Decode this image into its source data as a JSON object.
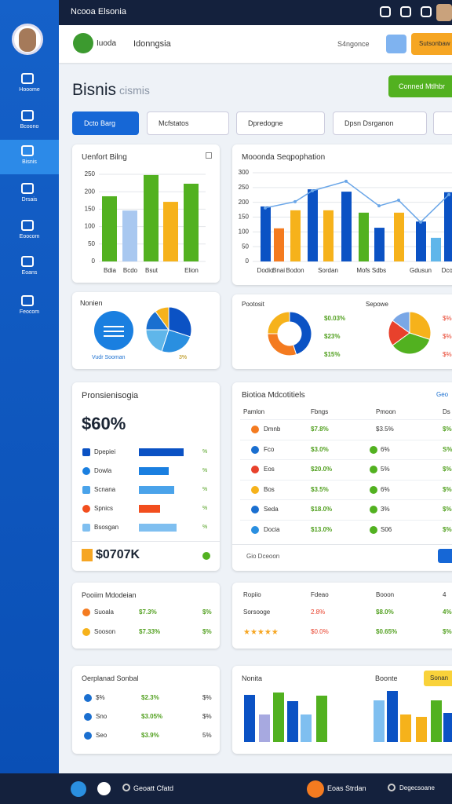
{
  "topbar": {
    "title": "Ncooa Elsonia"
  },
  "sidebar": {
    "items": [
      "Hooome",
      "Bcoono",
      "Bisnis",
      "Drsais",
      "Eoocom",
      "Eoans",
      "Feocom"
    ],
    "active": 2
  },
  "header": {
    "brand": "Iuoda",
    "country": "Idonngsia",
    "account": "S4ngonce",
    "button": "Sutsonbaw"
  },
  "page": {
    "title": "Bisnis",
    "subtitle": "cismis",
    "action": "Conned Mtlhbr"
  },
  "filters": [
    "Dcto Barg",
    "Mcfstatos",
    "Dpredogne",
    "Dpsn Dsrganon"
  ],
  "sales_chart": {
    "type": "bar",
    "title": "Uenfort Bilng",
    "categories": [
      "Bdia",
      "Bcdo",
      "Bsut",
      null,
      "Elion"
    ],
    "values": [
      187,
      146,
      248,
      171,
      223
    ],
    "colors": [
      "#52b120",
      "#a9c8f0",
      "#52b120",
      "#f6b21b",
      "#52b120"
    ],
    "ylim": [
      0,
      250
    ],
    "yticks": [
      0,
      50,
      100,
      150,
      200,
      250
    ]
  },
  "population_chart": {
    "type": "bar",
    "title": "Mooonda Seqpophation",
    "categories": [
      "Dodio",
      "Bnai",
      "Bodon",
      null,
      "Sordan",
      null,
      "Mofs",
      "Sdbs",
      null,
      "Gdusun",
      null,
      "Dcoo"
    ],
    "values": [
      186,
      112,
      173,
      244,
      173,
      236,
      165,
      114,
      165,
      135,
      80,
      234
    ],
    "colors": [
      "#0b52c4",
      "#f47b20",
      "#f6b21b",
      "#0b52c4",
      "#f6b21b",
      "#0b52c4",
      "#52b120",
      "#0b52c4",
      "#f6b21b",
      "#0b52c4",
      "#5fb6ea",
      "#0b52c4"
    ],
    "line_values": [
      181,
      null,
      202,
      239,
      null,
      271,
      null,
      188,
      207,
      133,
      null,
      226
    ],
    "line_color": "#6aa6e8",
    "ylim": [
      0,
      300
    ],
    "yticks": [
      0,
      50,
      100,
      150,
      200,
      250,
      300
    ]
  },
  "summary": {
    "title": "Nonien",
    "caption": "Vudr Sooman",
    "value": "3%",
    "pie": {
      "values": [
        30,
        25,
        20,
        15,
        10
      ],
      "colors": [
        "#0b52c4",
        "#2a8fe0",
        "#5fb6ea",
        "#1a6fd0",
        "#f6b21b"
      ]
    }
  },
  "portfolio": {
    "title": "Pootosit",
    "labels": [
      "$0.03%",
      "$23%",
      "$15%"
    ],
    "donut": {
      "values": [
        45,
        30,
        25
      ],
      "colors": [
        "#0b52c4",
        "#f47b20",
        "#f6b21b"
      ]
    },
    "title2": "Sepowe",
    "pie_labels": [
      "$%",
      "$%",
      "$%"
    ],
    "pie": {
      "values": [
        30,
        35,
        20,
        15
      ],
      "colors": [
        "#f6b21b",
        "#52b120",
        "#e8412c",
        "#7aa7e6"
      ]
    }
  },
  "progress": {
    "title": "Pronsienisogia",
    "total": "$60%",
    "max": 100,
    "rows": [
      {
        "label": "Dpepiei",
        "value": 95,
        "color": "#0b52c4",
        "unit": "%"
      },
      {
        "label": "Dowla",
        "value": 63,
        "color": "#1a7fe0",
        "unit": "%"
      },
      {
        "label": "Scnana",
        "value": 75,
        "color": "#4aa3ea",
        "unit": "%"
      },
      {
        "label": "Spnics",
        "value": 45,
        "color": "#f24e1e",
        "unit": "%"
      },
      {
        "label": "Bsosgan",
        "value": 80,
        "color": "#7fbff0",
        "unit": "%"
      }
    ],
    "footer": "$0707K"
  },
  "table": {
    "title": "Biotioa Mdcotitiels",
    "link": "Geo",
    "headers": [
      "Pamlon",
      "Fbngs",
      "Pmoon",
      "Ds"
    ],
    "rows": [
      {
        "color": "#f47b20",
        "cells": [
          "Dmnb",
          "$7.8%",
          "$3.5%",
          "$%"
        ]
      },
      {
        "color": "#1a6fd0",
        "cells": [
          "Fco",
          "$3.0%",
          "6%",
          "S%"
        ]
      },
      {
        "color": "#e8412c",
        "cells": [
          "Eos",
          "$20.0%",
          "5%",
          "$%"
        ]
      },
      {
        "color": "#f6b21b",
        "cells": [
          "Bos",
          "$3.5%",
          "6%",
          "$%"
        ]
      },
      {
        "color": "#1a6fd0",
        "cells": [
          "Seda",
          "$18.0%",
          "3%",
          "$%"
        ]
      },
      {
        "color": "#2a8fe0",
        "cells": [
          "Docia",
          "$13.0%",
          "S06",
          "$%"
        ]
      }
    ],
    "footer": "Gio Dceoon"
  },
  "models": {
    "title": "Pooiim Mdodeian",
    "rows": [
      {
        "color": "#f47b20",
        "cells": [
          "Suoala",
          "$7.3%",
          "$%"
        ]
      },
      {
        "color": "#f6b21b",
        "cells": [
          "Sooson",
          "$7.33%",
          "$%"
        ]
      }
    ]
  },
  "ratings": {
    "headers": [
      "Ropiio",
      "Fdeao",
      "Booon",
      "4"
    ],
    "rows": [
      [
        "Sorsooge",
        "2.8%",
        "$8.0%",
        "4%"
      ],
      [
        "★★★★★",
        "$0.0%",
        "$0.65%",
        "$%"
      ]
    ]
  },
  "social": {
    "title": "Oerplanad Sonbal",
    "rows": [
      [
        "$%",
        "$2.3%",
        "$%"
      ],
      [
        "Sno",
        "$3.05%",
        "$%"
      ],
      [
        "Seo",
        "$3.9%",
        "5%"
      ]
    ]
  },
  "monitor": {
    "title": "Nonita",
    "title2": "Boonte",
    "button": "Sonan",
    "values": [
      60,
      35,
      63,
      52,
      35,
      59,
      53,
      65,
      35,
      32,
      53,
      37
    ],
    "colors": [
      "#0b52c4",
      "#a7a9e0",
      "#52b120",
      "#0b52c4",
      "#7fbff0",
      "#52b120",
      "#7fbff0",
      "#0b52c4",
      "#f6b21b",
      "#f6b21b",
      "#52b120",
      "#0b52c4"
    ],
    "ylim": [
      0,
      70
    ]
  },
  "footer": {
    "left": "Geoatt Cfatd",
    "center": "Eoas Strdan",
    "right": "Degecsoane"
  }
}
